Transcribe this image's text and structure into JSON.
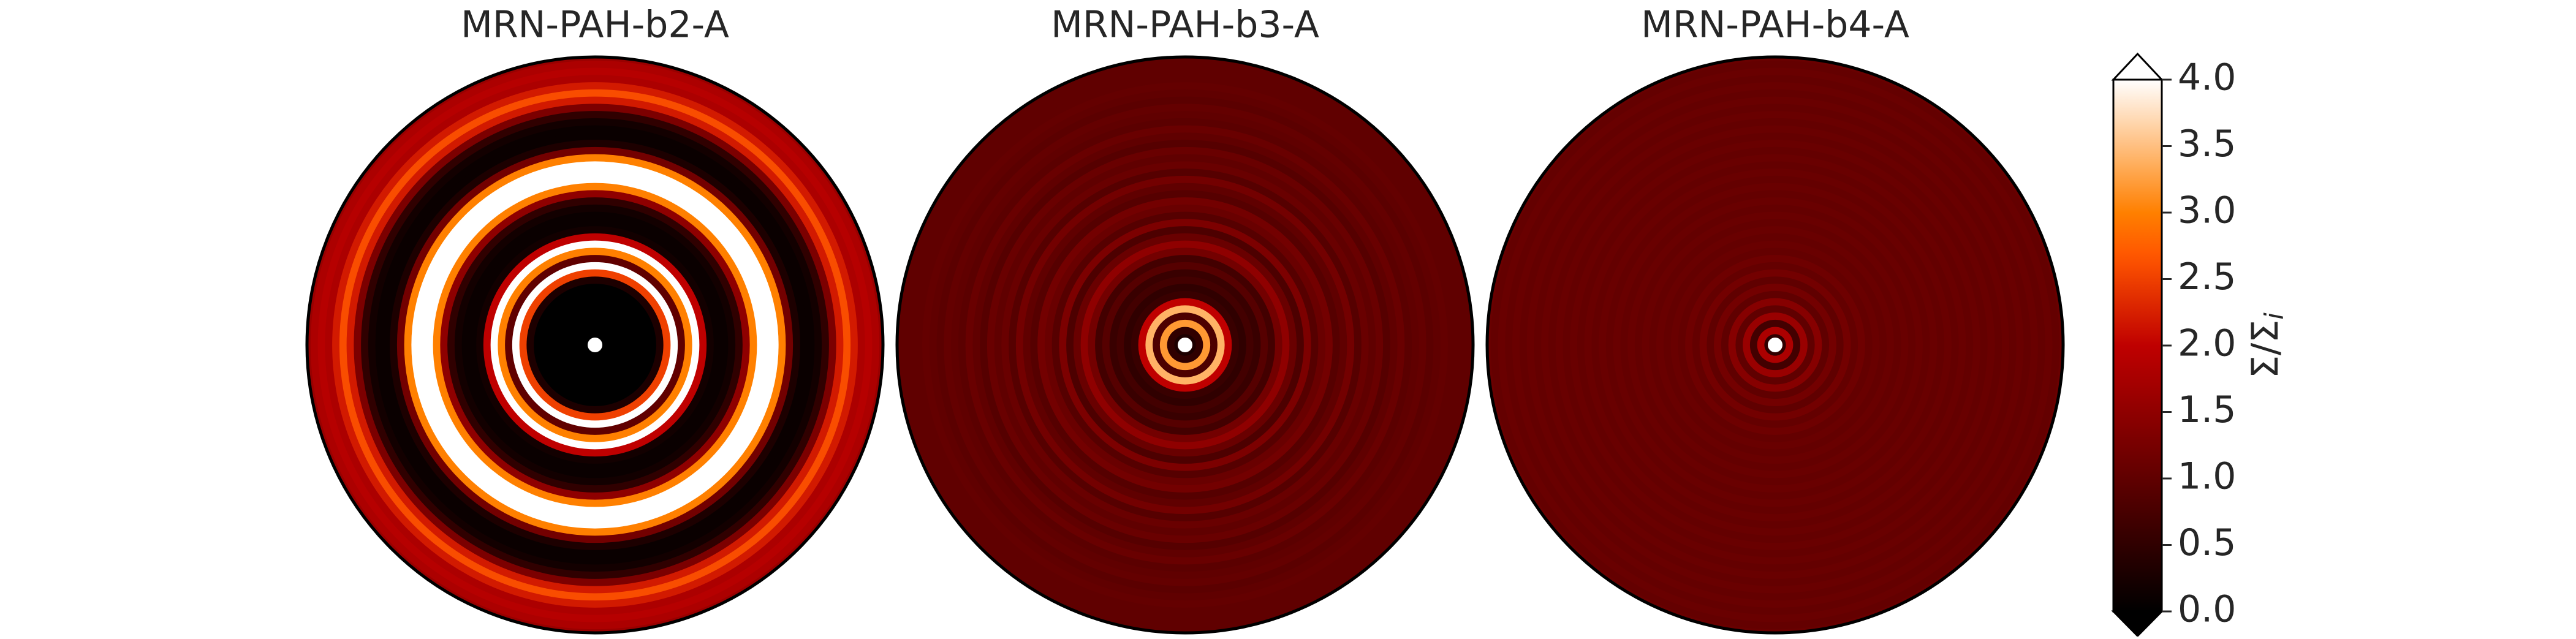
{
  "chart_data": [
    {
      "type": "radial",
      "title": "MRN-PAH-b2-A",
      "r": [
        0,
        0.025,
        0.05,
        0.075,
        0.1,
        0.125,
        0.15,
        0.175,
        0.2,
        0.225,
        0.25,
        0.275,
        0.3,
        0.325,
        0.35,
        0.375,
        0.4,
        0.425,
        0.45,
        0.475,
        0.5,
        0.525,
        0.55,
        0.575,
        0.6,
        0.625,
        0.65,
        0.675,
        0.7,
        0.725,
        0.75,
        0.775,
        0.8,
        0.825,
        0.85,
        0.875,
        0.9,
        0.925,
        0.95,
        0.975,
        1.0
      ],
      "values": [
        0,
        0,
        0,
        0,
        0,
        0,
        0,
        0,
        0,
        0.3,
        2.5,
        4.0,
        1.0,
        3.0,
        4.0,
        2.0,
        0.2,
        0.1,
        0.1,
        0.2,
        0.5,
        1.5,
        3.0,
        4.0,
        4.0,
        4.0,
        3.0,
        1.2,
        0.3,
        0.1,
        0.1,
        0.2,
        0.5,
        1.3,
        2.2,
        2.6,
        2.2,
        1.8,
        1.9,
        1.8,
        1.6
      ]
    },
    {
      "type": "radial",
      "title": "MRN-PAH-b3-A",
      "r": [
        0,
        0.025,
        0.05,
        0.075,
        0.1,
        0.125,
        0.15,
        0.175,
        0.2,
        0.225,
        0.25,
        0.275,
        0.3,
        0.325,
        0.35,
        0.375,
        0.4,
        0.425,
        0.45,
        0.475,
        0.5,
        0.525,
        0.55,
        0.575,
        0.6,
        0.625,
        0.65,
        0.675,
        0.7,
        0.725,
        0.75,
        0.775,
        0.8,
        0.825,
        0.85,
        0.875,
        0.9,
        0.925,
        0.95,
        0.975,
        1.0
      ],
      "values": [
        0.3,
        0.3,
        0.5,
        3.2,
        0.8,
        3.4,
        2.0,
        0.6,
        0.5,
        0.7,
        0.6,
        0.9,
        0.7,
        1.2,
        1.5,
        1.1,
        0.8,
        1.3,
        0.9,
        1.1,
        1.2,
        0.9,
        1.0,
        1.2,
        0.9,
        1.1,
        1.0,
        1.1,
        0.9,
        1.0,
        1.1,
        0.95,
        1.0,
        1.05,
        0.95,
        1.0,
        1.05,
        1.0,
        1.0,
        1.0,
        1.0
      ]
    },
    {
      "type": "radial",
      "title": "MRN-PAH-b4-A",
      "r": [
        0,
        0.025,
        0.05,
        0.075,
        0.1,
        0.125,
        0.15,
        0.175,
        0.2,
        0.225,
        0.25,
        0.275,
        0.3,
        0.325,
        0.35,
        0.375,
        0.4,
        0.425,
        0.45,
        0.475,
        0.5,
        0.525,
        0.55,
        0.575,
        0.6,
        0.625,
        0.65,
        0.675,
        0.7,
        0.725,
        0.75,
        0.775,
        0.8,
        0.825,
        0.85,
        0.875,
        0.9,
        0.925,
        0.95,
        0.975,
        1.0
      ],
      "values": [
        0.3,
        0.5,
        1.8,
        0.7,
        1.6,
        1.0,
        1.4,
        1.0,
        1.2,
        1.0,
        1.2,
        1.05,
        1.15,
        1.05,
        1.1,
        1.05,
        1.1,
        1.05,
        1.1,
        1.05,
        1.1,
        1.05,
        1.1,
        1.05,
        1.1,
        1.05,
        1.1,
        1.05,
        1.1,
        1.05,
        1.1,
        1.05,
        1.1,
        1.05,
        1.1,
        1.05,
        1.1,
        1.05,
        1.1,
        1.05,
        1.1
      ]
    },
    {
      "type": "colorbar",
      "label": "Σ/Σ",
      "label_subscript": "i",
      "colormap": "gist_heat",
      "extend": "both",
      "ylim": [
        0,
        4
      ],
      "yticks": [
        {
          "value": 0,
          "label": "0.0"
        },
        {
          "value": 0.5,
          "label": "0.5"
        },
        {
          "value": 1,
          "label": "1.0"
        },
        {
          "value": 1.5,
          "label": "1.5"
        },
        {
          "value": 2,
          "label": "2.0"
        },
        {
          "value": 2.5,
          "label": "2.5"
        },
        {
          "value": 3,
          "label": "3.0"
        },
        {
          "value": 3.5,
          "label": "3.5"
        },
        {
          "value": 4,
          "label": "4.0"
        }
      ]
    }
  ]
}
